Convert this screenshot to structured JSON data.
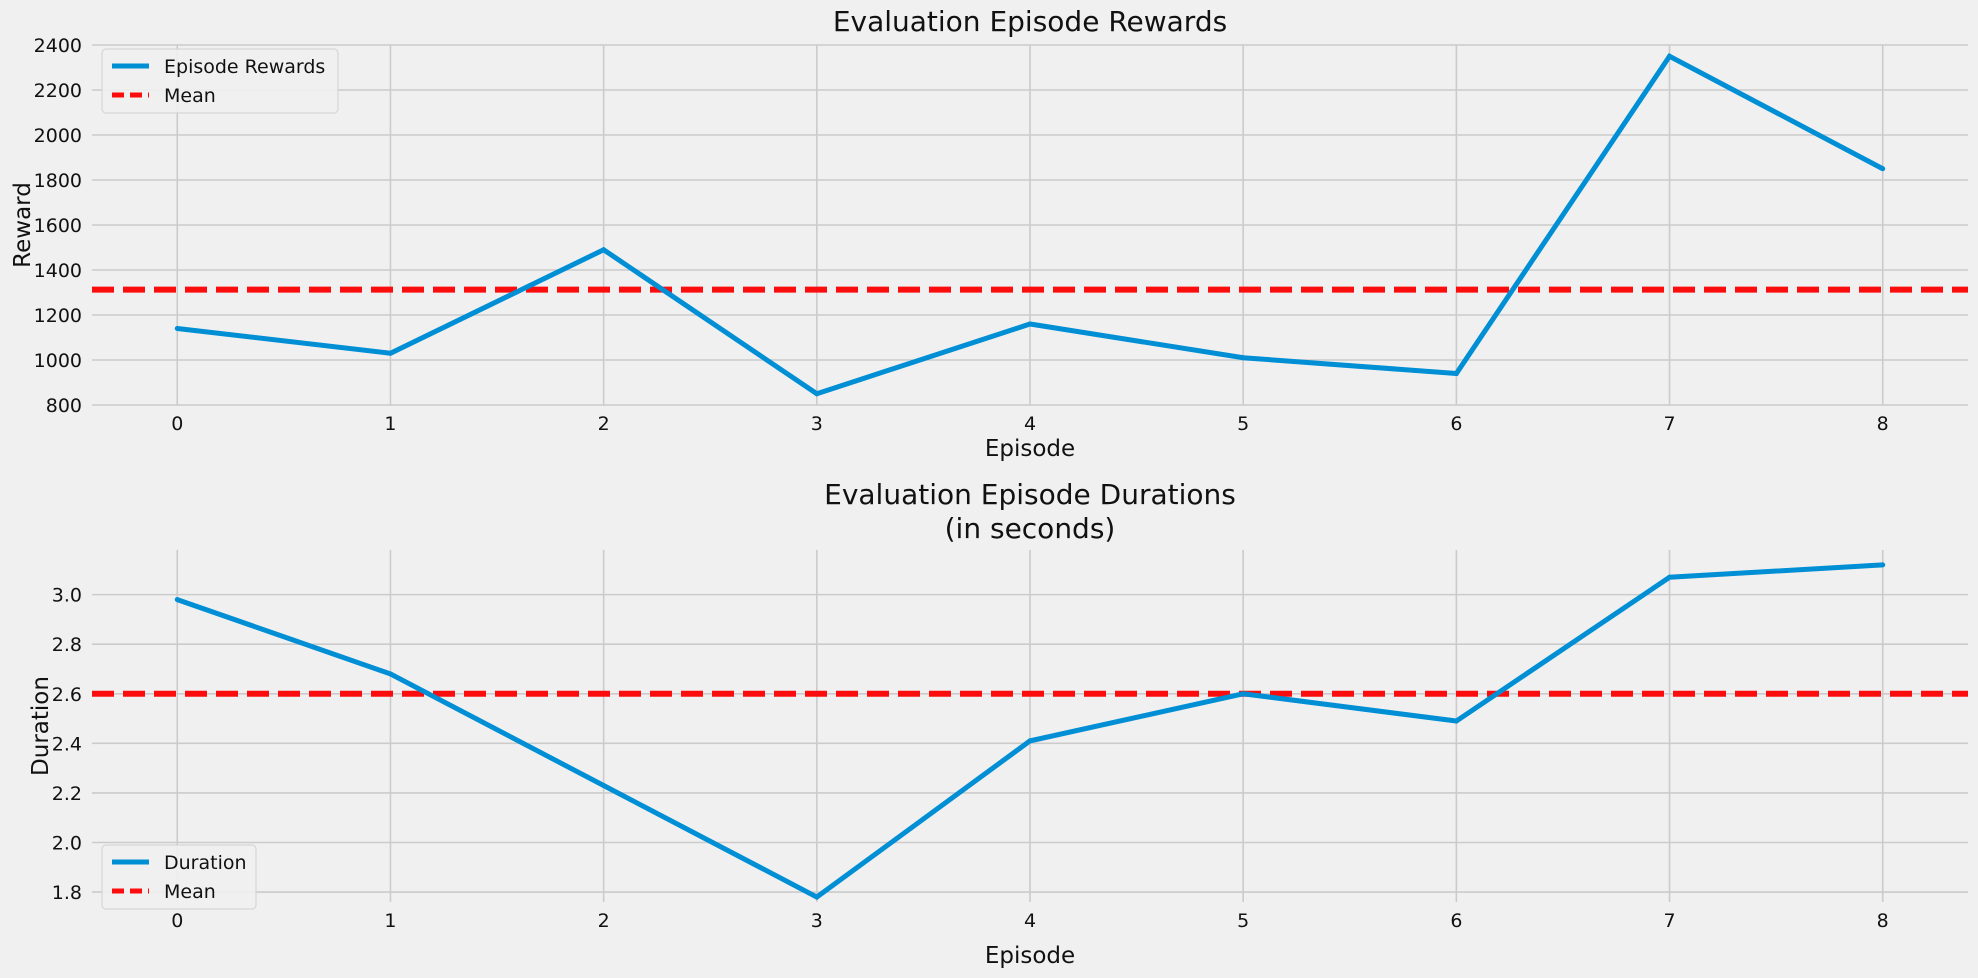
{
  "chart_data": [
    {
      "type": "line",
      "title": "Evaluation Episode Rewards",
      "title_lines": [
        "Evaluation Episode Rewards"
      ],
      "xlabel": "Episode",
      "ylabel": "Reward",
      "x": [
        0,
        1,
        2,
        3,
        4,
        5,
        6,
        7,
        8
      ],
      "x_ticks": [
        "0",
        "1",
        "2",
        "3",
        "4",
        "5",
        "6",
        "7",
        "8"
      ],
      "xlim": [
        -0.4,
        8.4
      ],
      "ylim": [
        800,
        2400
      ],
      "y_ticks": [
        800,
        1000,
        1200,
        1400,
        1600,
        1800,
        2000,
        2200,
        2400
      ],
      "y_tick_labels": [
        "800",
        "1000",
        "1200",
        "1400",
        "1600",
        "1800",
        "2000",
        "2200",
        "2400"
      ],
      "grid": true,
      "legend_placement": "upper-left",
      "series": [
        {
          "name": "Episode Rewards",
          "values": [
            1140,
            1030,
            1490,
            850,
            1160,
            1010,
            940,
            2350,
            1850
          ],
          "color": "#008fd5",
          "style": "solid"
        }
      ],
      "hlines": [
        {
          "name": "Mean",
          "value": 1313,
          "color": "#fc0d0d",
          "style": "dashed"
        }
      ]
    },
    {
      "type": "line",
      "title": "Evaluation Episode Durations\n(in seconds)",
      "title_lines": [
        "Evaluation Episode Durations",
        "(in seconds)"
      ],
      "xlabel": "Episode",
      "ylabel": "Duration",
      "x": [
        0,
        1,
        2,
        3,
        4,
        5,
        6,
        7,
        8
      ],
      "x_ticks": [
        "0",
        "1",
        "2",
        "3",
        "4",
        "5",
        "6",
        "7",
        "8"
      ],
      "xlim": [
        -0.4,
        8.4
      ],
      "ylim": [
        1.76,
        3.18
      ],
      "y_ticks": [
        1.8,
        2.0,
        2.2,
        2.4,
        2.6,
        2.8,
        3.0
      ],
      "y_tick_labels": [
        "1.8",
        "2.0",
        "2.2",
        "2.4",
        "2.6",
        "2.8",
        "3.0"
      ],
      "grid": true,
      "legend_placement": "lower-left",
      "series": [
        {
          "name": "Duration",
          "values": [
            2.98,
            2.68,
            2.23,
            1.78,
            2.41,
            2.6,
            2.49,
            3.07,
            3.12
          ],
          "color": "#008fd5",
          "style": "solid"
        }
      ],
      "hlines": [
        {
          "name": "Mean",
          "value": 2.6,
          "color": "#fc0d0d",
          "style": "dashed"
        }
      ]
    }
  ]
}
